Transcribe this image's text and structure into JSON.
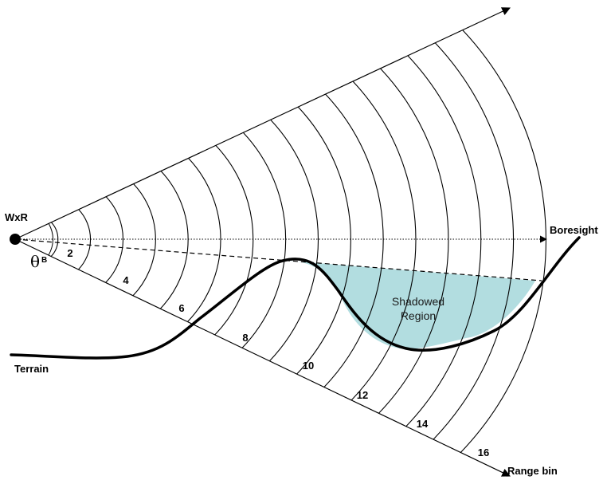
{
  "labels": {
    "radar": "WxR",
    "boresight": "Boresight",
    "terrain": "Terrain",
    "shadowed_line1": "Shadowed",
    "shadowed_line2": "Region",
    "range_bin": "Range bin",
    "theta": "θ",
    "theta_sub": "B"
  },
  "range_bins": [
    "2",
    "4",
    "6",
    "8",
    "10",
    "12",
    "14",
    "16"
  ],
  "colors": {
    "shadow_fill": "#b2dde0",
    "line": "#000000"
  }
}
